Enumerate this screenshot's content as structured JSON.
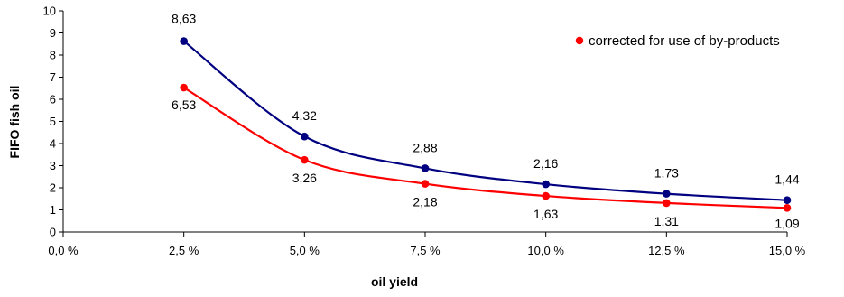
{
  "chart_data": {
    "type": "line",
    "xlabel": "oil yield",
    "ylabel": "FIFO fish oil",
    "xlim": [
      0.0,
      15.0
    ],
    "ylim": [
      0,
      10
    ],
    "x_ticks": [
      "0,0 %",
      "2,5 %",
      "5,0 %",
      "7,5 %",
      "10,0 %",
      "12,5 %",
      "15,0 %"
    ],
    "y_ticks": [
      "0",
      "1",
      "2",
      "3",
      "4",
      "5",
      "6",
      "7",
      "8",
      "9",
      "10"
    ],
    "grid": false,
    "legend_position": "top-right",
    "x": [
      2.5,
      5.0,
      7.5,
      10.0,
      12.5,
      15.0
    ],
    "series": [
      {
        "values": [
          8.63,
          4.32,
          2.88,
          2.16,
          1.73,
          1.44
        ],
        "labels": [
          "8,63",
          "4,32",
          "2,88",
          "2,16",
          "1,73",
          "1,44"
        ],
        "color": "#000080",
        "label_side": "above"
      },
      {
        "name": "corrected for use of by-products",
        "values": [
          6.53,
          3.26,
          2.18,
          1.63,
          1.31,
          1.09
        ],
        "labels": [
          "6,53",
          "3,26",
          "2,18",
          "1,63",
          "1,31",
          "1,09"
        ],
        "color": "#ff0000",
        "label_side": "below"
      }
    ]
  }
}
